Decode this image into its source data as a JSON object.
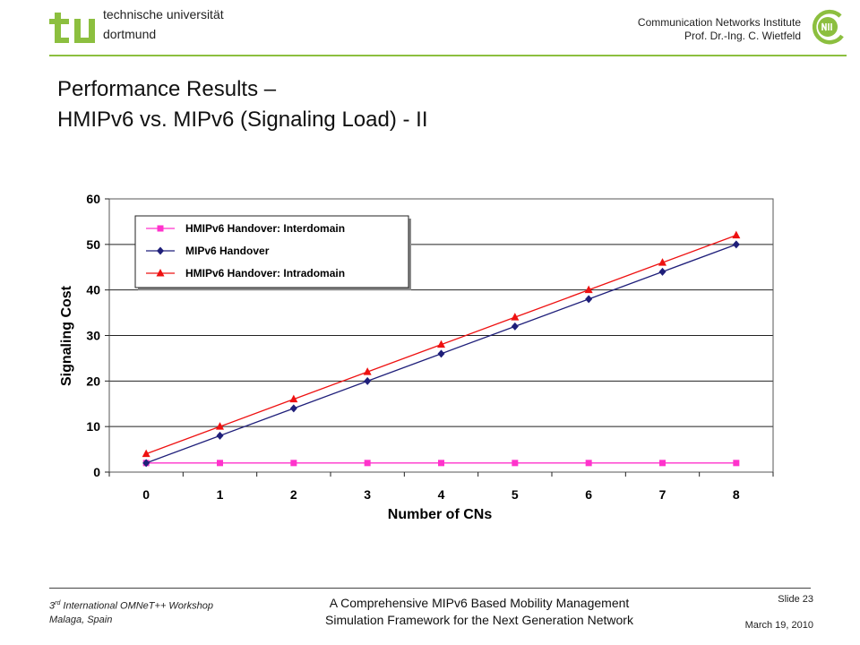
{
  "header": {
    "university_line1": "technische universität",
    "university_line2": "dortmund",
    "institute_line1": "Communication Networks Institute",
    "institute_line2": "Prof. Dr.-Ing. C. Wietfeld",
    "tu_logo_icon": "tu-logo-icon",
    "cni_logo_icon": "cni-logo-icon",
    "accent_color": "#8cbf3f"
  },
  "slide": {
    "title_line1": "Performance Results –",
    "title_line2": "HMIPv6 vs. MIPv6 (Signaling Load) - II"
  },
  "chart_data": {
    "type": "line",
    "xlabel": "Number of CNs",
    "ylabel": "Signaling Cost",
    "x": [
      0,
      1,
      2,
      3,
      4,
      5,
      6,
      7,
      8
    ],
    "x_ticks": [
      "0",
      "1",
      "2",
      "3",
      "4",
      "5",
      "6",
      "7",
      "8"
    ],
    "y_ticks": [
      "0",
      "10",
      "20",
      "30",
      "40",
      "50",
      "60"
    ],
    "ylim": [
      0,
      60
    ],
    "grid": "horizontal",
    "legend_position": "top-left",
    "series": [
      {
        "name": "HMIPv6 Handover: Interdomain",
        "color": "#ff33cc",
        "marker": "square",
        "values": [
          2,
          2,
          2,
          2,
          2,
          2,
          2,
          2,
          2
        ]
      },
      {
        "name": "MIPv6 Handover",
        "color": "#1f1f7a",
        "marker": "diamond",
        "values": [
          2,
          8,
          14,
          20,
          26,
          32,
          38,
          44,
          50
        ]
      },
      {
        "name": "HMIPv6 Handover: Intradomain",
        "color": "#ee1111",
        "marker": "triangle",
        "values": [
          4,
          10,
          16,
          22,
          28,
          34,
          40,
          46,
          52
        ]
      }
    ]
  },
  "footer": {
    "workshop_prefix": "3",
    "workshop_sup": "rd",
    "workshop_rest": " International OMNeT++ Workshop",
    "location": "Malaga, Spain",
    "title_line1": "A Comprehensive MIPv6 Based Mobility Management",
    "title_line2": "Simulation Framework for the Next Generation Network",
    "slide_label": "Slide 23",
    "date": "March 19, 2010"
  }
}
